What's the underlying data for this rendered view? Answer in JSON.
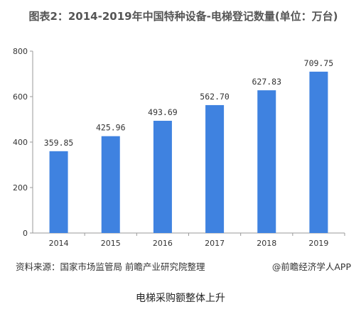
{
  "chart_data": {
    "type": "bar",
    "title": "图表2：2014-2019年中国特种设备-电梯登记数量(单位：万台)",
    "categories": [
      "2014",
      "2015",
      "2016",
      "2017",
      "2018",
      "2019"
    ],
    "values": [
      359.85,
      425.96,
      493.69,
      562.7,
      627.83,
      709.75
    ],
    "value_labels": [
      "359.85",
      "425.96",
      "493.69",
      "562.70",
      "627.83",
      "709.75"
    ],
    "ylim": [
      0,
      800
    ],
    "yticks": [
      0,
      200,
      400,
      600,
      800
    ],
    "xlabel": "",
    "ylabel": "",
    "grid": false,
    "bar_color": "#3f82e0"
  },
  "footer": {
    "source": "资料来源：国家市场监管局 前瞻产业研究院整理",
    "credit": "@前瞻经济学人APP"
  },
  "caption": "电梯采购额整体上升"
}
